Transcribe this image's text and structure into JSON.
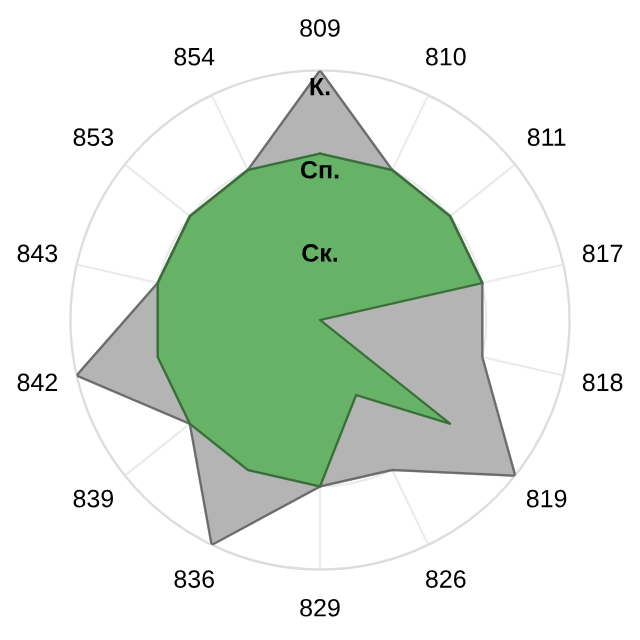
{
  "chart_data": {
    "type": "radar",
    "categories": [
      "809",
      "810",
      "811",
      "817",
      "818",
      "819",
      "826",
      "829",
      "836",
      "839",
      "842",
      "843",
      "853",
      "854"
    ],
    "series": [
      {
        "color": "#b4b4b4",
        "values": [
          3,
          2,
          2,
          2,
          2,
          3,
          2,
          2,
          3,
          2,
          3,
          2,
          2,
          2
        ]
      },
      {
        "color": "#66b266",
        "values": [
          2,
          2,
          2,
          2,
          0,
          2,
          1,
          2,
          2,
          2,
          2,
          2,
          2,
          2
        ]
      }
    ],
    "ylim": [
      0,
      3
    ],
    "yticks": [
      {
        "value": 1,
        "label": "Ск."
      },
      {
        "value": 2,
        "label": "Сп."
      },
      {
        "value": 3,
        "label": "К."
      }
    ],
    "grid": true
  }
}
